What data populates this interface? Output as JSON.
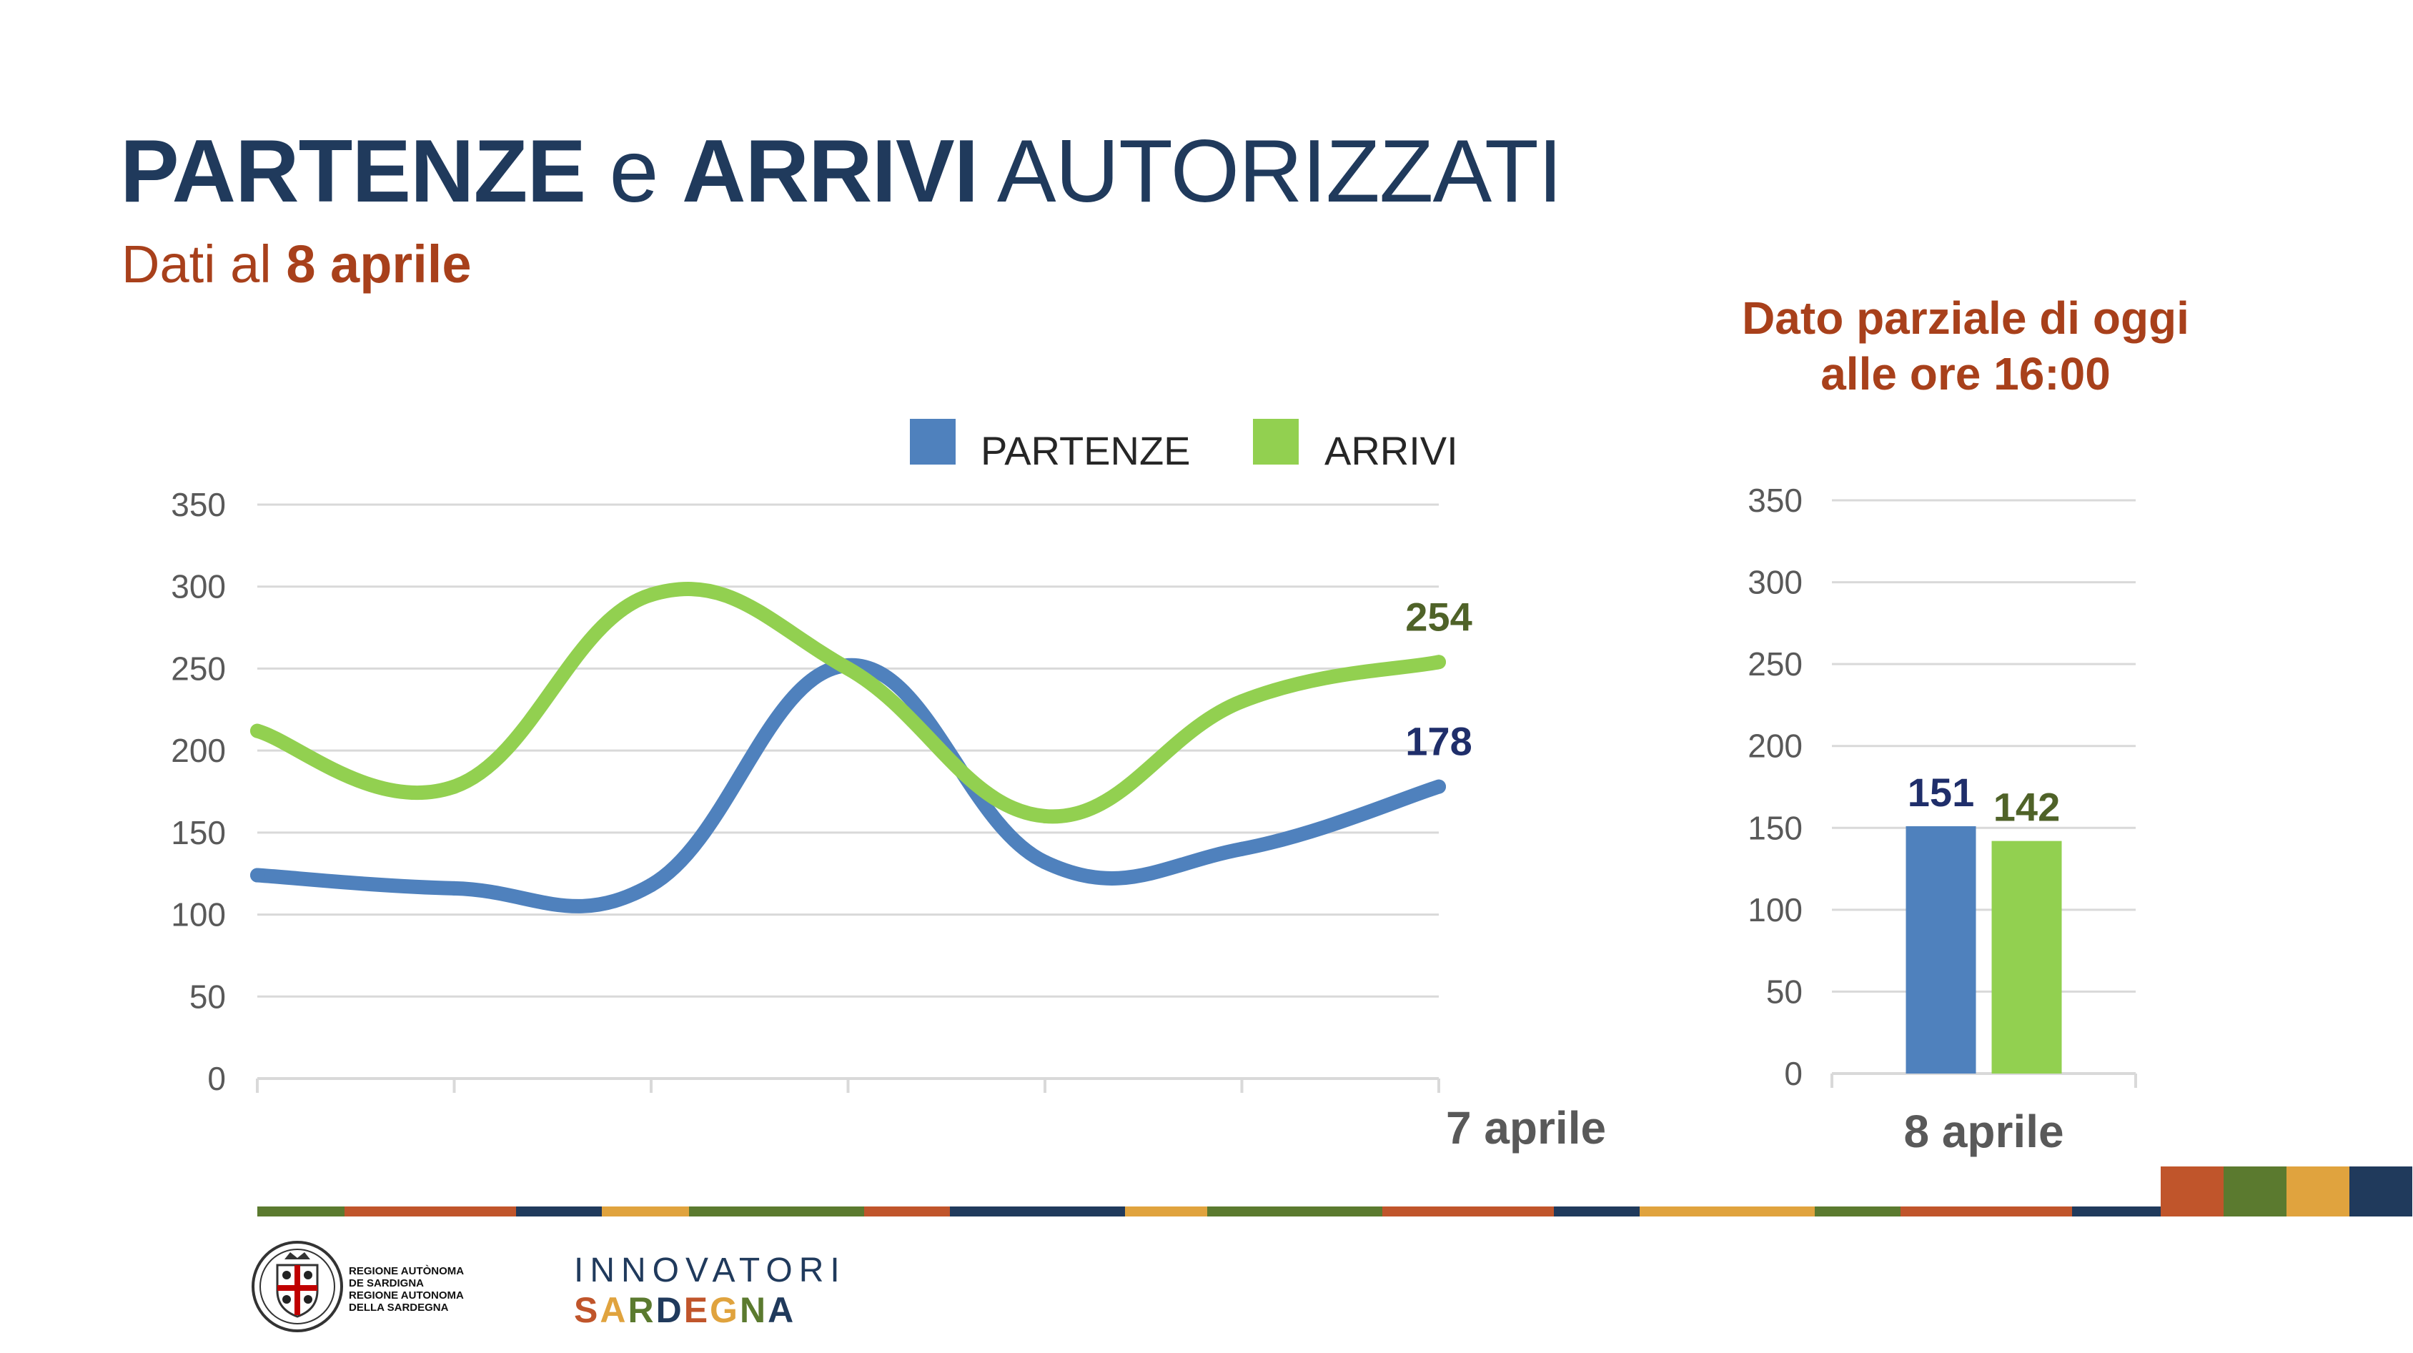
{
  "header": {
    "title_part1": "PARTENZE",
    "title_part2": "e",
    "title_part3": "ARRIVI",
    "title_part4": "AUTORIZZATI",
    "subtitle_part1": "Dati al",
    "subtitle_part2": "8 aprile"
  },
  "partial_note": {
    "line1": "Dato parziale di oggi",
    "line2": "alle ore 16:00"
  },
  "colors": {
    "partenze": "#4f81bd",
    "arrivi": "#92d050",
    "title_blue": "#203a5c",
    "accent_rust": "#a8401b",
    "partenze_label": "#1f2e6a",
    "arrivi_label": "#4f6228",
    "grid": "#d9d9d9",
    "axis_text": "#595959"
  },
  "chart_data": [
    {
      "type": "line",
      "ylim": [
        0,
        350
      ],
      "yticks": [
        "0",
        "50",
        "100",
        "150",
        "200",
        "250",
        "300",
        "350"
      ],
      "x_label_last": "7 aprile",
      "grid": true,
      "legend": "top-right",
      "x": [
        1,
        2,
        3,
        4,
        5,
        6,
        7
      ],
      "series": [
        {
          "name": "PARTENZE",
          "values": [
            124,
            116,
            118,
            252,
            132,
            140,
            178
          ],
          "end_label": "178"
        },
        {
          "name": "ARRIVI",
          "values": [
            212,
            178,
            295,
            250,
            160,
            230,
            254
          ],
          "end_label": "254"
        }
      ]
    },
    {
      "type": "bar",
      "ylim": [
        0,
        350
      ],
      "yticks": [
        "0",
        "50",
        "100",
        "150",
        "200",
        "250",
        "300",
        "350"
      ],
      "categories": [
        "8 aprile"
      ],
      "grid": true,
      "series": [
        {
          "name": "PARTENZE",
          "values": [
            151
          ],
          "label": "151"
        },
        {
          "name": "ARRIVI",
          "values": [
            142
          ],
          "label": "142"
        }
      ]
    }
  ],
  "footer": {
    "region_text": "REGIONE AUTÒNOMA\nDE SARDIGNA\nREGIONE AUTONOMA\nDELLA SARDEGNA",
    "innovatori": "INNOVATORI",
    "sardegna_letters": [
      "S",
      "A",
      "R",
      "D",
      "E",
      "G",
      "N",
      "A"
    ],
    "sardegna_colors": [
      "#c0552b",
      "#e0a33e",
      "#5b7a2f",
      "#203a5c",
      "#c0552b",
      "#e0a33e",
      "#5b7a2f",
      "#203a5c"
    ],
    "band_colors": [
      "#5b7a2f",
      "#c0552b",
      "#203a5c",
      "#e0a33e"
    ]
  }
}
